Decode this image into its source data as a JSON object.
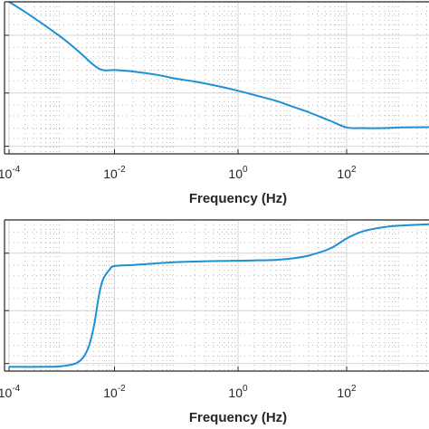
{
  "colors": {
    "line": "#1f8fd6",
    "axis": "#262626",
    "grid_major": "#d4d4d4",
    "grid_minor": "#b8b8b8",
    "background": "#ffffff"
  },
  "chart_data": [
    {
      "type": "line",
      "title": "",
      "xlabel": "Frequency (Hz)",
      "ylabel": "",
      "x_scale": "log",
      "xlim": [
        0.0001,
        10000
      ],
      "ylim": [
        0,
        5.3
      ],
      "x_tick_labels": [
        {
          "base": "10",
          "exp": "-4",
          "value": 0.0001
        },
        {
          "base": "10",
          "exp": "-2",
          "value": 0.01
        },
        {
          "base": "10",
          "exp": "0",
          "value": 1
        },
        {
          "base": "10",
          "exp": "2",
          "value": 100
        }
      ],
      "grid": true,
      "series": [
        {
          "x": [
            0.0001,
            0.0002,
            0.0005,
            0.001,
            0.002,
            0.004,
            0.006,
            0.01,
            0.02,
            0.05,
            0.1,
            0.2,
            0.5,
            1,
            2,
            5,
            10,
            20,
            50,
            100,
            200,
            500,
            1000,
            10000
          ],
          "y": [
            5.3,
            4.95,
            4.45,
            4.05,
            3.6,
            3.1,
            2.92,
            2.92,
            2.87,
            2.75,
            2.62,
            2.52,
            2.35,
            2.2,
            2.05,
            1.85,
            1.65,
            1.45,
            1.15,
            0.92,
            0.9,
            0.9,
            0.92,
            0.93
          ]
        }
      ]
    },
    {
      "type": "line",
      "title": "",
      "xlabel": "Frequency (Hz)",
      "ylabel": "",
      "x_scale": "log",
      "xlim": [
        0.0001,
        10000
      ],
      "ylim": [
        0,
        5.3
      ],
      "x_tick_labels": [
        {
          "base": "10",
          "exp": "-4",
          "value": 0.0001
        },
        {
          "base": "10",
          "exp": "-2",
          "value": 0.01
        },
        {
          "base": "10",
          "exp": "0",
          "value": 1
        },
        {
          "base": "10",
          "exp": "2",
          "value": 100
        }
      ],
      "grid": true,
      "series": [
        {
          "x": [
            0.0001,
            0.0005,
            0.001,
            0.002,
            0.003,
            0.004,
            0.005,
            0.006,
            0.008,
            0.01,
            0.02,
            0.05,
            0.1,
            0.2,
            0.5,
            1,
            2,
            5,
            10,
            20,
            50,
            100,
            200,
            500,
            1000,
            10000
          ],
          "y": [
            0.15,
            0.15,
            0.17,
            0.3,
            0.7,
            1.5,
            2.6,
            3.2,
            3.55,
            3.68,
            3.72,
            3.78,
            3.82,
            3.84,
            3.86,
            3.87,
            3.88,
            3.9,
            3.95,
            4.05,
            4.3,
            4.65,
            4.9,
            5.05,
            5.1,
            5.15
          ]
        }
      ]
    }
  ]
}
